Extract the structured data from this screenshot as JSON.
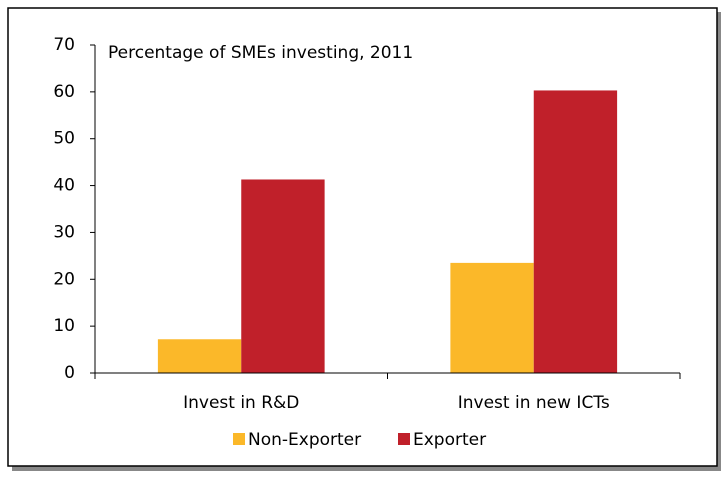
{
  "chart_data": {
    "type": "bar",
    "title": "Percentage of SMEs investing, 2011",
    "categories": [
      "Invest in R&D",
      "Invest in new ICTs"
    ],
    "series": [
      {
        "name": "Non-Exporter",
        "color": "#fbb829",
        "values": [
          7.2,
          23.5
        ]
      },
      {
        "name": "Exporter",
        "color": "#c0202a",
        "values": [
          41.3,
          60.3
        ]
      }
    ],
    "ylim": [
      0,
      70
    ],
    "yticks": [
      0,
      10,
      20,
      30,
      40,
      50,
      60,
      70
    ],
    "grid": false,
    "legend": "bottom"
  }
}
